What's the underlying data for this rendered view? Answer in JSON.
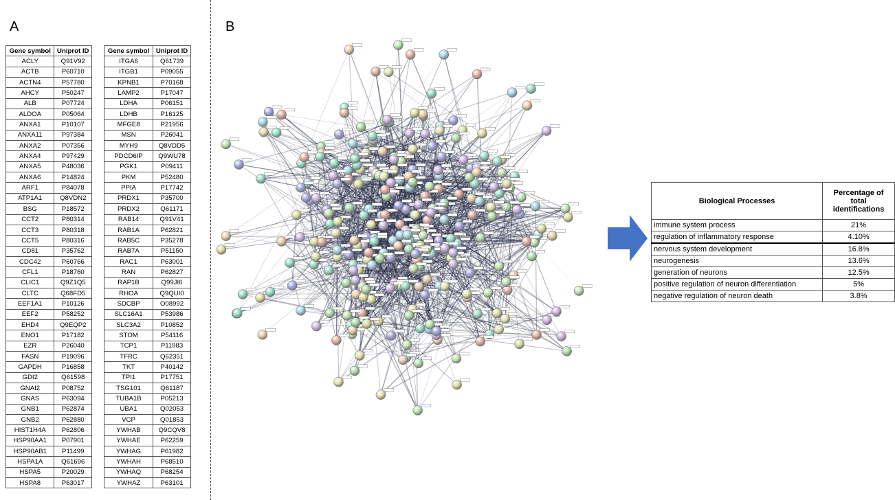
{
  "panel_a": {
    "label": "A",
    "headers": [
      "Gene symbol",
      "Uniprot ID"
    ],
    "table_left": [
      [
        "ACLY",
        "Q91V92"
      ],
      [
        "ACTB",
        "P60710"
      ],
      [
        "ACTN4",
        "P57780"
      ],
      [
        "AHCY",
        "P50247"
      ],
      [
        "ALB",
        "P07724"
      ],
      [
        "ALDOA",
        "P05064"
      ],
      [
        "ANXA1",
        "P10107"
      ],
      [
        "ANXA11",
        "P97384"
      ],
      [
        "ANXA2",
        "P07356"
      ],
      [
        "ANXA4",
        "P97429"
      ],
      [
        "ANXA5",
        "P48036"
      ],
      [
        "ANXA6",
        "P14824"
      ],
      [
        "ARF1",
        "P84078"
      ],
      [
        "ATP1A1",
        "Q8VDN2"
      ],
      [
        "BSG",
        "P18572"
      ],
      [
        "CCT2",
        "P80314"
      ],
      [
        "CCT3",
        "P80318"
      ],
      [
        "CCT5",
        "P80316"
      ],
      [
        "CD81",
        "P35762"
      ],
      [
        "CDC42",
        "P60766"
      ],
      [
        "CFL1",
        "P18760"
      ],
      [
        "CLIC1",
        "Q9Z1Q5"
      ],
      [
        "CLTC",
        "Q68FD5"
      ],
      [
        "EEF1A1",
        "P10126"
      ],
      [
        "EEF2",
        "P58252"
      ],
      [
        "EHD4",
        "Q9EQP2"
      ],
      [
        "ENO1",
        "P17182"
      ],
      [
        "EZR",
        "P26040"
      ],
      [
        "FASN",
        "P19096"
      ],
      [
        "GAPDH",
        "P16858"
      ],
      [
        "GDI2",
        "Q61598"
      ],
      [
        "GNAI2",
        "P08752"
      ],
      [
        "GNAS",
        "P63094"
      ],
      [
        "GNB1",
        "P62874"
      ],
      [
        "GNB2",
        "P62880"
      ],
      [
        "HIST1H4A",
        "P62806"
      ],
      [
        "HSP90AA1",
        "P07901"
      ],
      [
        "HSP90AB1",
        "P11499"
      ],
      [
        "HSPA1A",
        "Q61696"
      ],
      [
        "HSPA5",
        "P20029"
      ],
      [
        "HSPA8",
        "P63017"
      ]
    ],
    "table_right": [
      [
        "ITGA6",
        "Q61739"
      ],
      [
        "ITGB1",
        "P09055"
      ],
      [
        "KPNB1",
        "P70168"
      ],
      [
        "LAMP2",
        "P17047"
      ],
      [
        "LDHA",
        "P06151"
      ],
      [
        "LDHB",
        "P16125"
      ],
      [
        "MFGE8",
        "P21956"
      ],
      [
        "MSN",
        "P26041"
      ],
      [
        "MYH9",
        "Q8VDD5"
      ],
      [
        "PDCD6IP",
        "Q9WU78"
      ],
      [
        "PGK1",
        "P09411"
      ],
      [
        "PKM",
        "P52480"
      ],
      [
        "PPIA",
        "P17742"
      ],
      [
        "PRDX1",
        "P35700"
      ],
      [
        "PRDX2",
        "Q61171"
      ],
      [
        "RAB14",
        "Q91V41"
      ],
      [
        "RAB1A",
        "P62821"
      ],
      [
        "RAB5C",
        "P35278"
      ],
      [
        "RAB7A",
        "P51150"
      ],
      [
        "RAC1",
        "P63001"
      ],
      [
        "RAN",
        "P62827"
      ],
      [
        "RAP1B",
        "Q99JI6"
      ],
      [
        "RHOA",
        "Q9QUI0"
      ],
      [
        "SDCBP",
        "O08992"
      ],
      [
        "SLC16A1",
        "P53986"
      ],
      [
        "SLC3A2",
        "P10852"
      ],
      [
        "STOM",
        "P54116"
      ],
      [
        "TCP1",
        "P11983"
      ],
      [
        "TFRC",
        "Q62351"
      ],
      [
        "TKT",
        "P40142"
      ],
      [
        "TPI1",
        "P17751"
      ],
      [
        "TSG101",
        "Q61187"
      ],
      [
        "TUBA1B",
        "P05213"
      ],
      [
        "UBA1",
        "Q02053"
      ],
      [
        "VCP",
        "Q01853"
      ],
      [
        "YWHAB",
        "Q9CQV8"
      ],
      [
        "YWHAE",
        "P62259"
      ],
      [
        "YWHAG",
        "P61982"
      ],
      [
        "YWHAH",
        "P68510"
      ],
      [
        "YWHAQ",
        "P68254"
      ],
      [
        "YWHAZ",
        "P63101"
      ]
    ]
  },
  "panel_b": {
    "label": "B",
    "network": {
      "node_colors": [
        "#a8d8a0",
        "#a0a0e0",
        "#e0a898",
        "#9fd2e0",
        "#d8d898",
        "#c8b0e0",
        "#e8c8a0",
        "#8fd8c0",
        "#b8e0a8",
        "#e0e0a8"
      ],
      "edge_color": "#2a2f4a",
      "label_color": "#333333"
    },
    "arrow_color": "#4472c4",
    "table": {
      "headers": [
        "Biological Processes",
        "Percentage of total identifications"
      ],
      "rows": [
        {
          "process": "immune system process",
          "percent": "21%"
        },
        {
          "process": "regulation of inflammatory response",
          "percent": "4.10%"
        },
        {
          "process": "nervous system development",
          "percent": "16.8%"
        },
        {
          "process": "neurogenesis",
          "percent": "13.6%"
        },
        {
          "process": "generation of neurons",
          "percent": "12.5%"
        },
        {
          "process": "positive regulation of neuron differentiation",
          "percent": "5%"
        },
        {
          "process": "negative regulation of neuron death",
          "percent": "3.8%"
        }
      ]
    }
  }
}
